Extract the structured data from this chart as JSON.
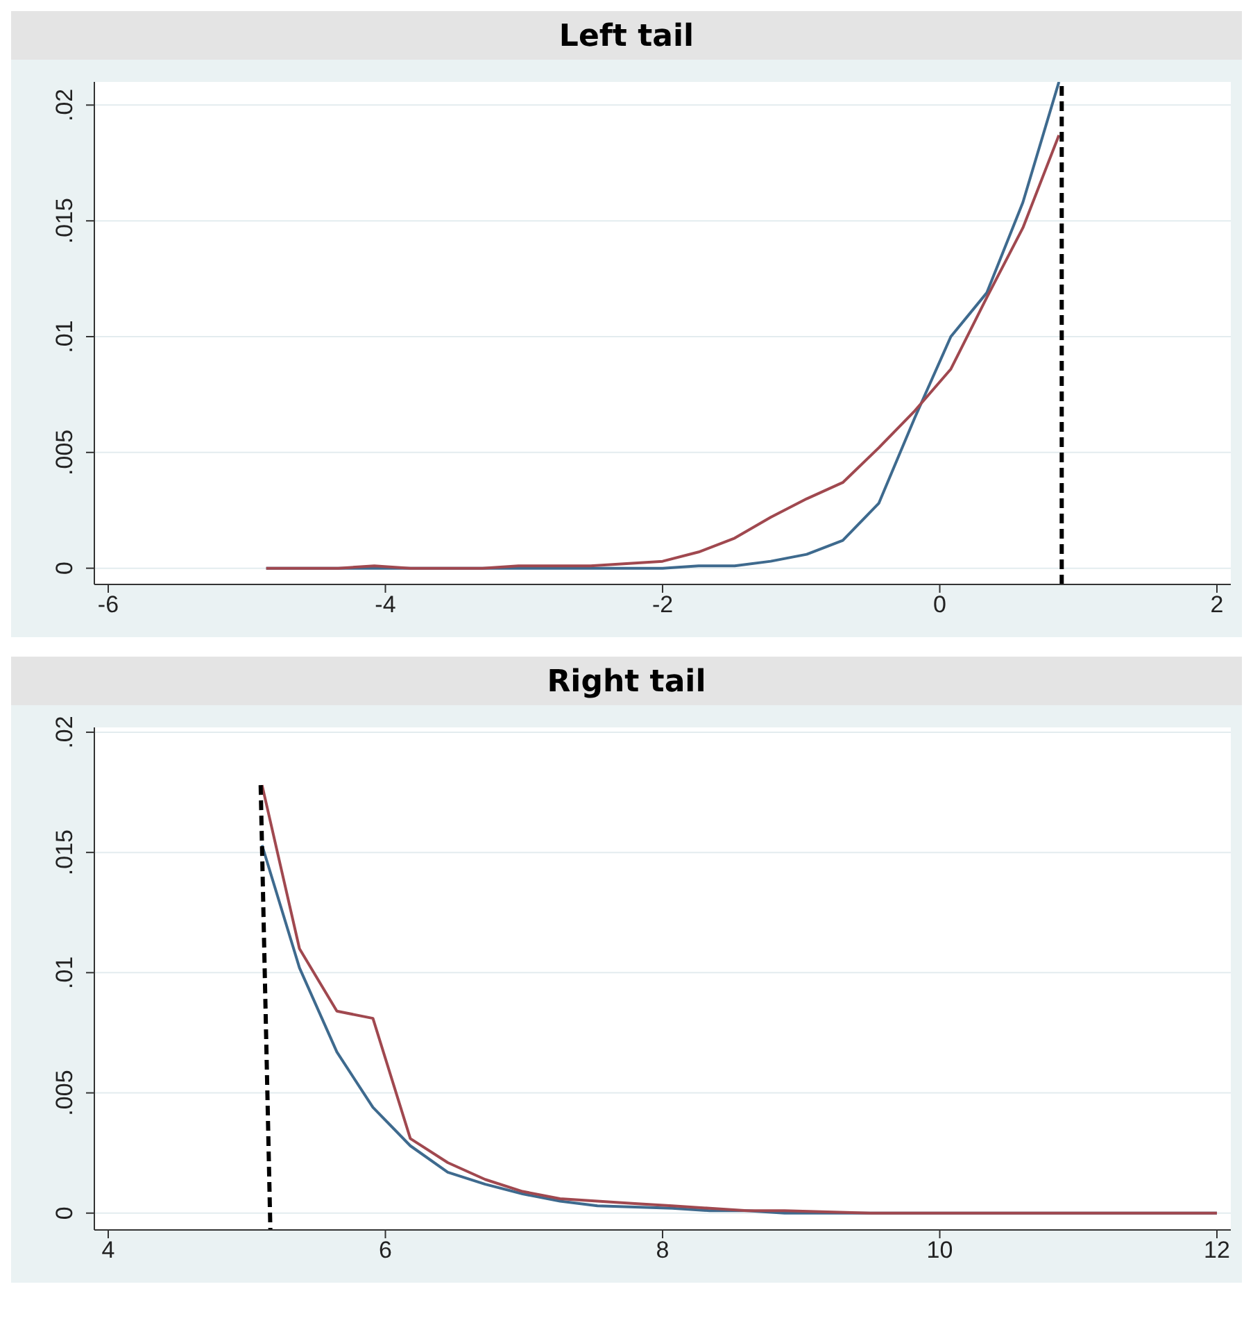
{
  "chart_data": [
    {
      "type": "line",
      "title": "Left tail",
      "xlim": [
        -6.1,
        2.1
      ],
      "xticks": [
        -6,
        -4,
        -2,
        0,
        2
      ],
      "ylim": [
        -0.0007,
        0.021
      ],
      "yticks": [
        {
          "value": 0,
          "label": "0"
        },
        {
          "value": 0.005,
          "label": ".005"
        },
        {
          "value": 0.01,
          "label": ".01"
        },
        {
          "value": 0.015,
          "label": ".015"
        },
        {
          "value": 0.02,
          "label": ".02"
        }
      ],
      "grid": "y",
      "marker": "none",
      "line_style": "solid",
      "series": [
        {
          "color": "#3e6a8e",
          "x": [
            -4.86,
            -4.6,
            -4.34,
            -4.08,
            -3.82,
            -3.56,
            -3.3,
            -3.04,
            -2.78,
            -2.52,
            -2.26,
            -2.0,
            -1.74,
            -1.48,
            -1.22,
            -0.96,
            -0.7,
            -0.44,
            -0.18,
            0.08,
            0.34,
            0.6,
            0.86
          ],
          "values": [
            0,
            0,
            0,
            0,
            0,
            0,
            0,
            0,
            0,
            0,
            0,
            0,
            0.0001,
            0.0001,
            0.0003,
            0.0006,
            0.0012,
            0.0028,
            0.0065,
            0.01,
            0.0119,
            0.0158,
            0.021
          ]
        },
        {
          "color": "#a0484f",
          "x": [
            -4.86,
            -4.6,
            -4.34,
            -4.08,
            -3.82,
            -3.56,
            -3.3,
            -3.04,
            -2.78,
            -2.52,
            -2.26,
            -2.0,
            -1.74,
            -1.48,
            -1.22,
            -0.96,
            -0.7,
            -0.44,
            -0.18,
            0.08,
            0.34,
            0.6,
            0.86
          ],
          "values": [
            0,
            0,
            0,
            0.0001,
            0,
            0,
            0,
            0.0001,
            0.0001,
            0.0001,
            0.0002,
            0.0003,
            0.0007,
            0.0013,
            0.0022,
            0.003,
            0.0037,
            0.0052,
            0.0068,
            0.0086,
            0.0117,
            0.0147,
            0.0187
          ]
        }
      ],
      "ref_lines": [
        {
          "axis": "x",
          "value": 0.88,
          "color": "#000000",
          "line_style": "dashed"
        }
      ]
    },
    {
      "type": "line",
      "title": "Right tail",
      "xlim": [
        3.9,
        12.1
      ],
      "xticks": [
        4,
        6,
        8,
        10,
        12
      ],
      "ylim": [
        -0.0007,
        0.0202
      ],
      "yticks": [
        {
          "value": 0,
          "label": "0"
        },
        {
          "value": 0.005,
          "label": ".005"
        },
        {
          "value": 0.01,
          "label": ".01"
        },
        {
          "value": 0.015,
          "label": ".015"
        },
        {
          "value": 0.02,
          "label": ".02"
        }
      ],
      "grid": "y",
      "marker": "none",
      "line_style": "solid",
      "series": [
        {
          "color": "#3e6a8e",
          "x": [
            5.11,
            5.38,
            5.65,
            5.91,
            6.18,
            6.45,
            6.72,
            6.99,
            7.26,
            7.53,
            7.8,
            8.07,
            8.34,
            8.61,
            8.88,
            9.5,
            10,
            11,
            12
          ],
          "values": [
            0.0153,
            0.0102,
            0.0067,
            0.0044,
            0.0028,
            0.0017,
            0.0012,
            0.0008,
            0.0005,
            0.0003,
            0.00025,
            0.0002,
            0.0001,
            0.0001,
            0,
            0,
            0,
            0,
            0
          ]
        },
        {
          "color": "#a0484f",
          "x": [
            5.11,
            5.38,
            5.65,
            5.91,
            6.18,
            6.45,
            6.72,
            6.99,
            7.26,
            7.53,
            7.8,
            8.07,
            8.34,
            8.61,
            8.88,
            9.5,
            10,
            11,
            12
          ],
          "values": [
            0.0178,
            0.011,
            0.0084,
            0.0081,
            0.0031,
            0.0021,
            0.0014,
            0.0009,
            0.0006,
            0.0005,
            0.0004,
            0.0003,
            0.0002,
            0.0001,
            0.0001,
            0,
            0,
            0,
            0
          ]
        },
        {
          "type": "line",
          "color": "#000000",
          "line_style": "dashed",
          "x": [
            5.1,
            5.17
          ],
          "values": [
            0.0178,
            -0.0007
          ]
        }
      ]
    }
  ]
}
